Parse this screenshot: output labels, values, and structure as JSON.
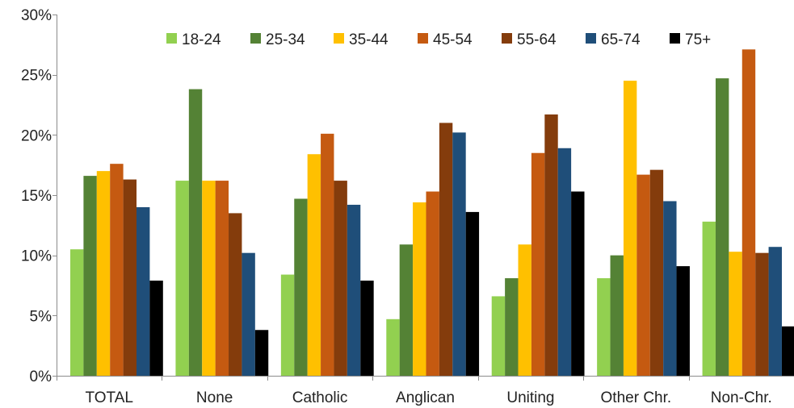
{
  "chart_data": {
    "type": "bar",
    "title": "",
    "xlabel": "",
    "ylabel": "",
    "ylim": [
      0,
      30
    ],
    "y_ticks": [
      "0%",
      "5%",
      "10%",
      "15%",
      "20%",
      "25%",
      "30%"
    ],
    "grid": false,
    "legend_position": "top",
    "categories": [
      "TOTAL",
      "None",
      "Catholic",
      "Anglican",
      "Uniting",
      "Other Chr.",
      "Non-Chr."
    ],
    "series": [
      {
        "name": "18-24",
        "color": "#92d050",
        "values": [
          10.5,
          16.2,
          8.4,
          4.7,
          6.6,
          8.1,
          12.8
        ]
      },
      {
        "name": "25-34",
        "color": "#548235",
        "values": [
          16.6,
          23.8,
          14.7,
          10.9,
          8.1,
          10.0,
          24.7
        ]
      },
      {
        "name": "35-44",
        "color": "#ffc000",
        "values": [
          17.0,
          16.2,
          18.4,
          14.4,
          10.9,
          24.5,
          10.3
        ]
      },
      {
        "name": "45-54",
        "color": "#c55a11",
        "values": [
          17.6,
          16.2,
          20.1,
          15.3,
          18.5,
          16.7,
          27.1
        ]
      },
      {
        "name": "55-64",
        "color": "#843c0c",
        "values": [
          16.3,
          13.5,
          16.2,
          21.0,
          21.7,
          17.1,
          10.2
        ]
      },
      {
        "name": "65-74",
        "color": "#1f4e79",
        "values": [
          14.0,
          10.2,
          14.2,
          20.2,
          18.9,
          14.5,
          10.7
        ]
      },
      {
        "name": "75+",
        "color": "#000000",
        "values": [
          7.9,
          3.8,
          7.9,
          13.6,
          15.3,
          9.1,
          4.1
        ]
      }
    ]
  }
}
